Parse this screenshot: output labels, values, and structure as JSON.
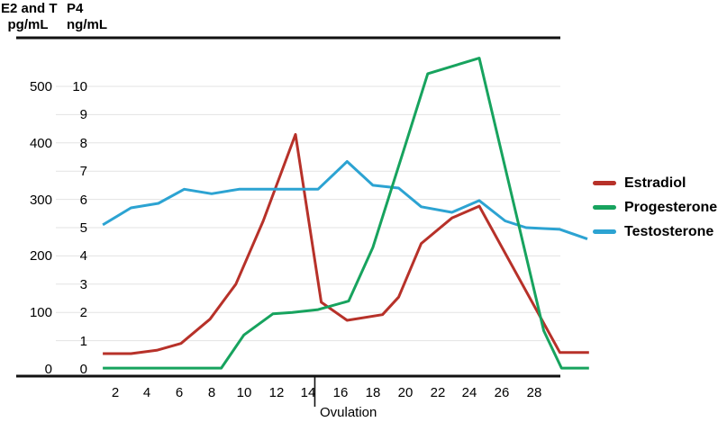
{
  "figure": {
    "left_axis_title": [
      "E2 and T",
      "pg/mL"
    ],
    "p4_axis_title": [
      "P4",
      "ng/mL"
    ],
    "ovulation_label": "Ovulation"
  },
  "legend": [
    {
      "label": "Estradiol",
      "color": "#b73129"
    },
    {
      "label": "Progesterone",
      "color": "#17a35e"
    },
    {
      "label": "Testosterone",
      "color": "#2ca3d2"
    }
  ],
  "chart_data": {
    "type": "line",
    "title": "",
    "x_ticks": [
      2,
      4,
      6,
      8,
      10,
      12,
      14,
      16,
      18,
      20,
      22,
      24,
      26,
      28
    ],
    "x_range_days": [
      1.25,
      31.4
    ],
    "ovulation_day": 14.4,
    "left_axis": {
      "name": "E2 and T pg/mL",
      "ticks": [
        500,
        400,
        300,
        200,
        100,
        0
      ],
      "range": [
        0,
        550
      ]
    },
    "p4_axis": {
      "name": "P4 ng/mL",
      "ticks": [
        10,
        9,
        8,
        7,
        6,
        5,
        4,
        3,
        2,
        1,
        0
      ],
      "range": [
        0,
        11
      ],
      "gridlines_at": [
        1,
        2,
        3,
        4,
        5,
        6,
        7,
        8,
        9,
        10
      ]
    },
    "unit_conversion": "50 pg/mL on E2/T axis aligns with 1 ng/mL on P4 axis",
    "grid": true,
    "legend_position": "right",
    "series": [
      {
        "name": "Estradiol",
        "unit": "pg/mL",
        "color": "#b73129",
        "points": [
          [
            1.25,
            27
          ],
          [
            3,
            27
          ],
          [
            4.6,
            33
          ],
          [
            6.1,
            45
          ],
          [
            7.9,
            88
          ],
          [
            9.5,
            150
          ],
          [
            11.2,
            262
          ],
          [
            13.2,
            415
          ],
          [
            14.8,
            118
          ],
          [
            16.4,
            86
          ],
          [
            18.6,
            96
          ],
          [
            19.6,
            127
          ],
          [
            21,
            222
          ],
          [
            22.9,
            267
          ],
          [
            24.6,
            288
          ],
          [
            29.6,
            29
          ],
          [
            31.4,
            29
          ]
        ]
      },
      {
        "name": "Progesterone",
        "unit": "ng/mL",
        "color": "#17a35e",
        "points": [
          [
            1.25,
            0.03
          ],
          [
            8.6,
            0.03
          ],
          [
            10,
            1.2
          ],
          [
            11.8,
            1.95
          ],
          [
            13,
            2.0
          ],
          [
            14.6,
            2.1
          ],
          [
            16.5,
            2.4
          ],
          [
            18,
            4.3
          ],
          [
            20,
            7.9
          ],
          [
            21.4,
            10.45
          ],
          [
            24.6,
            11.0
          ],
          [
            28.6,
            1.35
          ],
          [
            29.7,
            0.03
          ],
          [
            31.4,
            0.03
          ]
        ]
      },
      {
        "name": "Testosterone",
        "unit": "pg/mL",
        "color": "#2ca3d2",
        "points": [
          [
            1.25,
            255
          ],
          [
            3,
            285
          ],
          [
            4.7,
            293
          ],
          [
            6.3,
            318
          ],
          [
            8,
            310
          ],
          [
            9.7,
            318
          ],
          [
            14.6,
            318
          ],
          [
            16.4,
            367
          ],
          [
            18,
            325
          ],
          [
            19.6,
            320
          ],
          [
            21,
            287
          ],
          [
            22.9,
            277
          ],
          [
            24.6,
            298
          ],
          [
            26.2,
            262
          ],
          [
            27.5,
            250
          ],
          [
            29.6,
            247
          ],
          [
            31.3,
            230
          ]
        ]
      }
    ]
  }
}
